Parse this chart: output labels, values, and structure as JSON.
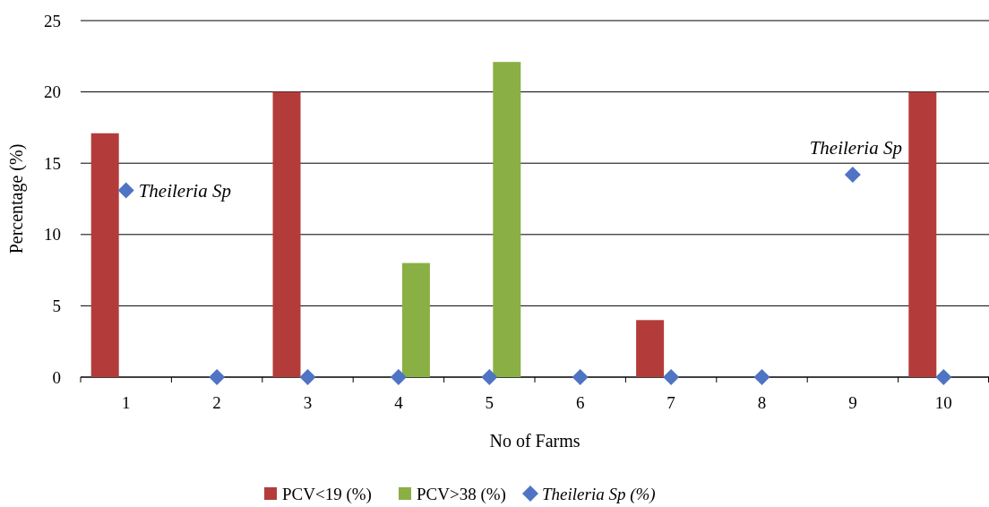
{
  "chart_data": {
    "type": "bar",
    "xlabel": "No of Farms",
    "ylabel": "Percentage (%)",
    "categories": [
      "1",
      "2",
      "3",
      "4",
      "5",
      "6",
      "7",
      "8",
      "9",
      "10"
    ],
    "series": [
      {
        "name": "PCV<19 (%)",
        "color": "#b33c3a",
        "values": [
          17.1,
          null,
          20,
          null,
          null,
          null,
          4,
          null,
          null,
          20
        ]
      },
      {
        "name": "PCV>38 (%)",
        "color": "#8aaf44",
        "values": [
          null,
          null,
          null,
          8,
          22.1,
          null,
          null,
          null,
          null,
          null
        ]
      },
      {
        "name": "Theileria Sp (%)",
        "type": "scatter",
        "marker": "diamond",
        "color": "#4f74c4",
        "values": [
          13.1,
          0,
          0,
          0,
          0,
          0,
          0,
          0,
          14.2,
          0
        ]
      }
    ],
    "ylim": [
      0,
      25
    ],
    "yticks": [
      0,
      5,
      10,
      15,
      20,
      25
    ],
    "grid": "y",
    "legend": "bottom",
    "annotations": [
      {
        "text": "Theileria Sp",
        "x": "1",
        "y": 13.1
      },
      {
        "text": "Theileria Sp",
        "x": "9",
        "y": 14.2
      }
    ]
  }
}
